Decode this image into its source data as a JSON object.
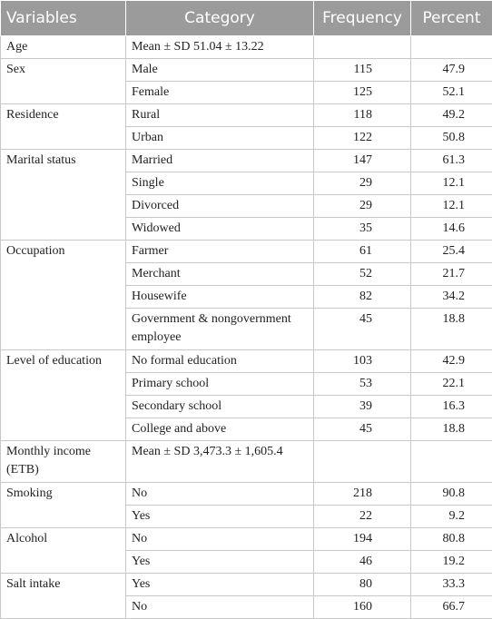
{
  "table": {
    "header": [
      "Variables",
      "Category",
      "Frequency",
      "Percent"
    ],
    "groups": [
      {
        "variable": "Age",
        "rows": [
          [
            "Mean ± SD 51.04 ± 13.22"
          ]
        ]
      },
      {
        "variable": "Sex",
        "rows": [
          [
            "Male",
            115,
            47.9
          ],
          [
            "Female",
            125,
            52.1
          ]
        ]
      },
      {
        "variable": "Residence",
        "rows": [
          [
            "Rural",
            118,
            49.2
          ],
          [
            "Urban",
            122,
            50.8
          ]
        ]
      },
      {
        "variable": "Marital status",
        "rows": [
          [
            "Married",
            147,
            61.3
          ],
          [
            "Single",
            29,
            12.1
          ],
          [
            "Divorced",
            29,
            12.1
          ],
          [
            "Widowed",
            35,
            14.6
          ]
        ]
      },
      {
        "variable": "Occupation",
        "rows": [
          [
            "Farmer",
            61,
            25.4
          ],
          [
            "Merchant",
            52,
            21.7
          ],
          [
            "Housewife",
            82,
            34.2
          ],
          [
            "Government & nongovernment employee",
            45,
            18.8
          ]
        ]
      },
      {
        "variable": "Level of education",
        "rows": [
          [
            "No formal education",
            103,
            42.9
          ],
          [
            "Primary school",
            53,
            22.1
          ],
          [
            "Secondary school",
            39,
            16.3
          ],
          [
            "College and above",
            45,
            18.8
          ]
        ]
      },
      {
        "variable": "Monthly income (ETB)",
        "rows": [
          [
            "Mean ± SD 3,473.3 ± 1,605.4"
          ]
        ]
      },
      {
        "variable": "Smoking",
        "rows": [
          [
            "No",
            218,
            90.8
          ],
          [
            "Yes",
            22,
            9.2
          ]
        ]
      },
      {
        "variable": "Alcohol",
        "rows": [
          [
            "No",
            194,
            80.8
          ],
          [
            "Yes",
            46,
            19.2
          ]
        ]
      },
      {
        "variable": "Salt intake",
        "rows": [
          [
            "Yes",
            80,
            33.3
          ],
          [
            "No",
            160,
            66.7
          ]
        ]
      }
    ]
  }
}
